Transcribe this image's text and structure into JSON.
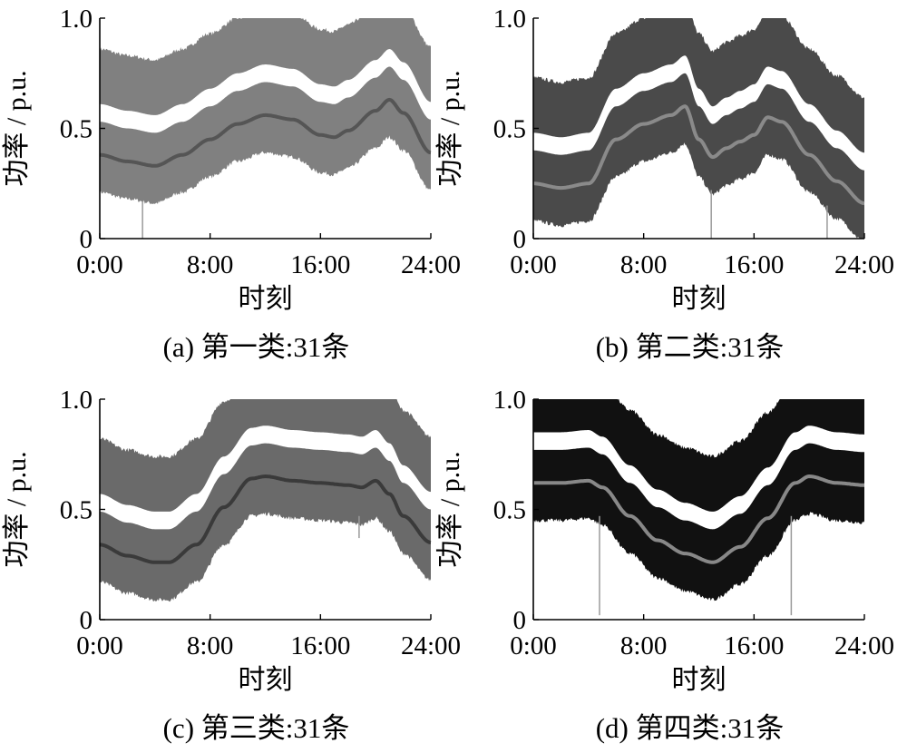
{
  "chart_data": [
    {
      "type": "area",
      "caption": "(a)  第一类:31条",
      "xlabel": "时刻",
      "ylabel": "功率 / p.u.",
      "xticks": [
        "0:00",
        "8:00",
        "16:00",
        "24:00"
      ],
      "yticks": [
        "0",
        "0.5",
        "1.0"
      ],
      "xlim": [
        0,
        24
      ],
      "ylim": [
        0,
        1.0
      ],
      "color": "#808080",
      "mean_color": "#555555",
      "band_half_width": 0.17,
      "series": [
        {
          "values": [
            {
              "x": 0,
              "y": 0.38
            },
            {
              "x": 2,
              "y": 0.35
            },
            {
              "x": 4,
              "y": 0.33
            },
            {
              "x": 6,
              "y": 0.38
            },
            {
              "x": 8,
              "y": 0.45
            },
            {
              "x": 10,
              "y": 0.52
            },
            {
              "x": 12,
              "y": 0.56
            },
            {
              "x": 14,
              "y": 0.54
            },
            {
              "x": 16,
              "y": 0.47
            },
            {
              "x": 17,
              "y": 0.46
            },
            {
              "x": 18,
              "y": 0.49
            },
            {
              "x": 20,
              "y": 0.58
            },
            {
              "x": 21,
              "y": 0.63
            },
            {
              "x": 22,
              "y": 0.57
            },
            {
              "x": 24,
              "y": 0.39
            }
          ]
        }
      ],
      "spikes": [
        {
          "x": 3.1,
          "from": 0.17,
          "to": 0.0
        }
      ]
    },
    {
      "type": "area",
      "caption": "(b)  第二类:31条",
      "xlabel": "时刻",
      "ylabel": "功率 / p.u.",
      "xticks": [
        "0:00",
        "8:00",
        "16:00",
        "24:00"
      ],
      "yticks": [
        "0",
        "0.5",
        "1.0"
      ],
      "xlim": [
        0,
        24
      ],
      "ylim": [
        0,
        1.0
      ],
      "color": "#4a4a4a",
      "mean_color": "#8a8a8a",
      "band_half_width": 0.17,
      "series": [
        {
          "values": [
            {
              "x": 0,
              "y": 0.25
            },
            {
              "x": 2,
              "y": 0.23
            },
            {
              "x": 4,
              "y": 0.25
            },
            {
              "x": 6,
              "y": 0.45
            },
            {
              "x": 8,
              "y": 0.52
            },
            {
              "x": 10,
              "y": 0.56
            },
            {
              "x": 11,
              "y": 0.6
            },
            {
              "x": 12,
              "y": 0.45
            },
            {
              "x": 13,
              "y": 0.37
            },
            {
              "x": 14,
              "y": 0.41
            },
            {
              "x": 15,
              "y": 0.44
            },
            {
              "x": 16,
              "y": 0.47
            },
            {
              "x": 17,
              "y": 0.55
            },
            {
              "x": 18,
              "y": 0.53
            },
            {
              "x": 20,
              "y": 0.38
            },
            {
              "x": 22,
              "y": 0.26
            },
            {
              "x": 24,
              "y": 0.16
            }
          ]
        }
      ],
      "spikes": [
        {
          "x": 12.9,
          "from": 0.22,
          "to": 0.0
        },
        {
          "x": 21.3,
          "from": 0.15,
          "to": 0.0
        }
      ]
    },
    {
      "type": "area",
      "caption": "(c)  第三类:31条",
      "xlabel": "时刻",
      "ylabel": "功率 / p.u.",
      "xticks": [
        "0:00",
        "8:00",
        "16:00",
        "24:00"
      ],
      "yticks": [
        "0",
        "0.5",
        "1.0"
      ],
      "xlim": [
        0,
        24
      ],
      "ylim": [
        0,
        1.0
      ],
      "color": "#6a6a6a",
      "mean_color": "#3a3a3a",
      "band_half_width": 0.17,
      "series": [
        {
          "values": [
            {
              "x": 0,
              "y": 0.34
            },
            {
              "x": 2,
              "y": 0.29
            },
            {
              "x": 4,
              "y": 0.26
            },
            {
              "x": 5,
              "y": 0.26
            },
            {
              "x": 7,
              "y": 0.34
            },
            {
              "x": 9,
              "y": 0.51
            },
            {
              "x": 11,
              "y": 0.64
            },
            {
              "x": 12,
              "y": 0.65
            },
            {
              "x": 14,
              "y": 0.63
            },
            {
              "x": 16,
              "y": 0.62
            },
            {
              "x": 18,
              "y": 0.61
            },
            {
              "x": 19,
              "y": 0.6
            },
            {
              "x": 20,
              "y": 0.63
            },
            {
              "x": 21,
              "y": 0.57
            },
            {
              "x": 22,
              "y": 0.47
            },
            {
              "x": 24,
              "y": 0.35
            }
          ]
        }
      ],
      "spikes": [
        {
          "x": 18.8,
          "from": 0.47,
          "to": 0.37
        }
      ]
    },
    {
      "type": "area",
      "caption": "(d)  第四类:31条",
      "xlabel": "时刻",
      "ylabel": "功率 / p.u.",
      "xticks": [
        "0:00",
        "8:00",
        "16:00",
        "24:00"
      ],
      "yticks": [
        "0",
        "0.5",
        "1.0"
      ],
      "xlim": [
        0,
        24
      ],
      "ylim": [
        0,
        1.0
      ],
      "color": "#111111",
      "mean_color": "#888888",
      "band_half_width": 0.17,
      "series": [
        {
          "values": [
            {
              "x": 0,
              "y": 0.62
            },
            {
              "x": 2,
              "y": 0.62
            },
            {
              "x": 4,
              "y": 0.63
            },
            {
              "x": 5,
              "y": 0.6
            },
            {
              "x": 7,
              "y": 0.47
            },
            {
              "x": 9,
              "y": 0.36
            },
            {
              "x": 11,
              "y": 0.3
            },
            {
              "x": 13,
              "y": 0.26
            },
            {
              "x": 15,
              "y": 0.33
            },
            {
              "x": 17,
              "y": 0.46
            },
            {
              "x": 19,
              "y": 0.62
            },
            {
              "x": 20,
              "y": 0.65
            },
            {
              "x": 22,
              "y": 0.62
            },
            {
              "x": 24,
              "y": 0.61
            }
          ]
        }
      ],
      "spikes": [
        {
          "x": 4.8,
          "from": 0.47,
          "to": 0.02
        },
        {
          "x": 18.7,
          "from": 0.47,
          "to": 0.02
        }
      ]
    }
  ]
}
